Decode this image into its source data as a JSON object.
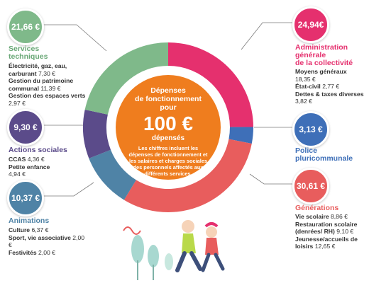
{
  "chart_data": {
    "type": "pie",
    "title": "Dépenses de fonctionnement pour",
    "total": "100 €",
    "total_label": "dépensés",
    "description": "Les chiffres incluent les dépenses de fonctionnement et les salaires et charges sociales des personnels affectés aux différents services.",
    "slices": [
      {
        "name": "Administration générale de la collectivité",
        "value": 24.94,
        "label": "24,94€",
        "color": "#e5306e",
        "items": [
          {
            "name": "Moyens généraux",
            "value": "18,35 €"
          },
          {
            "name": "État-civil",
            "value": "2,77 €"
          },
          {
            "name": "Dettes & taxes diverses",
            "value": "3,82 €"
          }
        ]
      },
      {
        "name": "Police pluricommunale",
        "value": 3.13,
        "label": "3,13 €",
        "color": "#3e6fb8",
        "items": []
      },
      {
        "name": "Générations",
        "value": 30.61,
        "label": "30,61 €",
        "color": "#e85d5d",
        "items": [
          {
            "name": "Vie scolaire",
            "value": "8,86 €"
          },
          {
            "name": "Restauration scolaire (denrées/ RH)",
            "value": "9,10 €"
          },
          {
            "name": "Jeunesse/accueils de loisirs",
            "value": "12,65 €"
          }
        ]
      },
      {
        "name": "Animations",
        "value": 10.37,
        "label": "10,37 €",
        "color": "#4f83a6",
        "items": [
          {
            "name": "Culture",
            "value": "6,37 €"
          },
          {
            "name": "Sport, vie associative",
            "value": "2,00 €"
          },
          {
            "name": "Festivités",
            "value": "2,00 €"
          }
        ]
      },
      {
        "name": "Actions sociales",
        "value": 9.3,
        "label": "9,30 €",
        "color": "#5b4b8a",
        "items": [
          {
            "name": "CCAS",
            "value": "4,36 €"
          },
          {
            "name": "Petite enfance",
            "value": "4,94 €"
          }
        ]
      },
      {
        "name": "Services techniques",
        "value": 21.66,
        "label": "21,66 €",
        "color": "#7fb98a",
        "items": [
          {
            "name": "Électricité, gaz, eau, carburant",
            "value": "7,30 €"
          },
          {
            "name": "Gestion du patrimoine communal",
            "value": "11,39 €"
          },
          {
            "name": "Gestion des espaces verts",
            "value": "2,97 €"
          }
        ]
      }
    ]
  },
  "text": {
    "center_title_1": "Dépenses",
    "center_title_2": "de fonctionnement",
    "center_title_3": "pour",
    "center_amount": "100 €",
    "center_spent": "dépensés",
    "center_desc": "Les chiffres incluent les dépenses de fonctionnement et les salaires et charges sociales des personnels affectés aux différents services.",
    "admin_title_1": "Administration",
    "admin_title_2": "générale",
    "admin_title_3": "de la collectivité",
    "police_title_1": "Police",
    "police_title_2": "pluricommunale",
    "gen_title": "Générations",
    "anim_title": "Animations",
    "social_title": "Actions sociales",
    "tech_title_1": "Services",
    "tech_title_2": "techniques"
  }
}
